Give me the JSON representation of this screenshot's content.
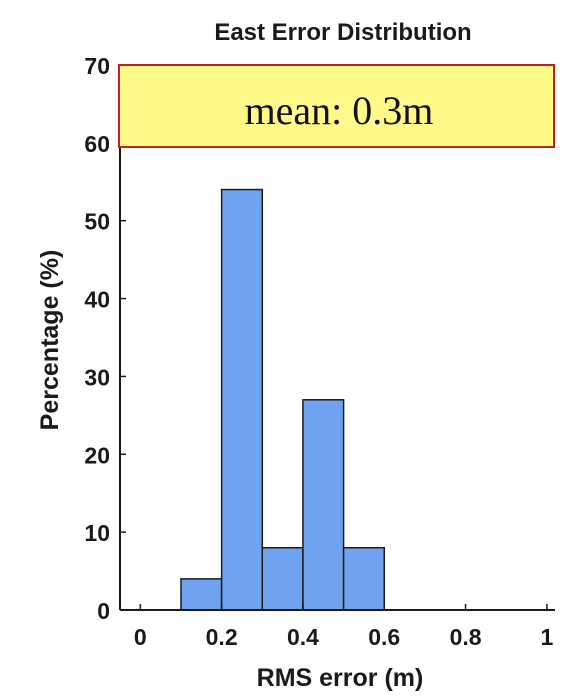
{
  "chart_data": {
    "type": "bar",
    "title": "East Error Distribution",
    "xlabel": "RMS error (m)",
    "ylabel": "Percentage (%)",
    "xlim": [
      -0.05,
      1.02
    ],
    "ylim": [
      0,
      70
    ],
    "x_ticks": [
      0,
      0.2,
      0.4,
      0.6,
      0.8,
      1
    ],
    "x_tick_labels": [
      "0",
      "0.2",
      "0.4",
      "0.6",
      "0.8",
      "1"
    ],
    "y_ticks": [
      0,
      10,
      20,
      30,
      40,
      50,
      60,
      70
    ],
    "y_tick_labels": [
      "0",
      "10",
      "20",
      "30",
      "40",
      "50",
      "60",
      "70"
    ],
    "bin_width": 0.1,
    "bins": [
      {
        "start": 0.1,
        "end": 0.2,
        "value": 4
      },
      {
        "start": 0.2,
        "end": 0.3,
        "value": 54
      },
      {
        "start": 0.3,
        "end": 0.4,
        "value": 8
      },
      {
        "start": 0.4,
        "end": 0.5,
        "value": 27
      },
      {
        "start": 0.5,
        "end": 0.6,
        "value": 8
      }
    ],
    "grid": false,
    "bar_color": "#6fa3f0",
    "bar_edge_color": "#1a1a1a",
    "annotation": {
      "text": "mean: 0.3m",
      "fill": "#fff98a",
      "border": "#b0262a"
    }
  }
}
